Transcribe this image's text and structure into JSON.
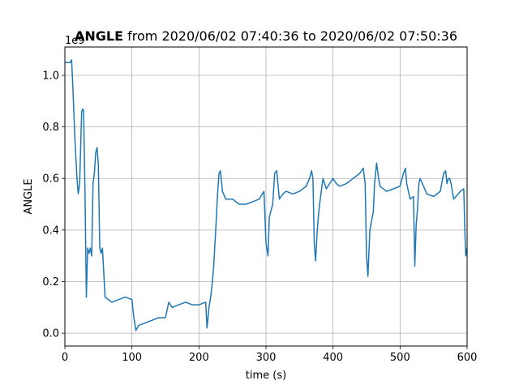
{
  "chart_data": {
    "type": "line",
    "title_bold": "ANGLE",
    "title_rest": " from 2020/06/02 07:40:36 to 2020/06/02 07:50:36",
    "xlabel": "time (s)",
    "ylabel": "ANGLE",
    "offset_text": "1e9",
    "xlim": [
      0,
      600
    ],
    "ylim": [
      -0.05,
      1.11
    ],
    "xticks": [
      0,
      100,
      200,
      300,
      400,
      500,
      600
    ],
    "xtick_labels": [
      "0",
      "100",
      "200",
      "300",
      "400",
      "500",
      "600"
    ],
    "yticks": [
      0.0,
      0.2,
      0.4,
      0.6,
      0.8,
      1.0
    ],
    "ytick_labels": [
      "0.0",
      "0.2",
      "0.4",
      "0.6",
      "0.8",
      "1.0"
    ],
    "grid": true,
    "line_color": "#1f77b4",
    "series": [
      {
        "x": [
          0,
          8,
          10,
          12,
          15,
          18,
          20,
          22,
          25,
          27,
          28,
          30,
          32,
          34,
          36,
          38,
          40,
          42,
          44,
          46,
          48,
          50,
          52,
          54,
          56,
          60,
          70,
          80,
          90,
          100,
          103,
          106,
          110,
          120,
          130,
          140,
          150,
          155,
          160,
          170,
          180,
          190,
          200,
          210,
          212,
          215,
          218,
          220,
          222,
          225,
          228,
          230,
          232,
          235,
          240,
          250,
          260,
          270,
          280,
          290,
          297,
          300,
          303,
          305,
          308,
          310,
          313,
          316,
          320,
          325,
          330,
          340,
          350,
          360,
          365,
          368,
          370,
          372,
          374,
          376,
          378,
          380,
          385,
          390,
          395,
          400,
          405,
          410,
          420,
          430,
          440,
          445,
          448,
          450,
          452,
          455,
          460,
          462,
          465,
          468,
          470,
          480,
          490,
          500,
          505,
          508,
          510,
          515,
          520,
          522,
          524,
          526,
          528,
          530,
          540,
          550,
          560,
          565,
          568,
          570,
          572,
          574,
          576,
          580,
          590,
          595,
          597,
          598,
          600
        ],
        "y": [
          1.05,
          1.05,
          1.06,
          0.95,
          0.75,
          0.6,
          0.54,
          0.58,
          0.86,
          0.87,
          0.86,
          0.55,
          0.14,
          0.33,
          0.31,
          0.33,
          0.3,
          0.58,
          0.62,
          0.7,
          0.72,
          0.65,
          0.33,
          0.31,
          0.33,
          0.14,
          0.12,
          0.13,
          0.14,
          0.13,
          0.06,
          0.01,
          0.03,
          0.04,
          0.05,
          0.06,
          0.06,
          0.12,
          0.1,
          0.11,
          0.12,
          0.11,
          0.11,
          0.12,
          0.02,
          0.1,
          0.15,
          0.2,
          0.26,
          0.4,
          0.55,
          0.62,
          0.63,
          0.55,
          0.52,
          0.52,
          0.5,
          0.5,
          0.51,
          0.52,
          0.55,
          0.35,
          0.3,
          0.45,
          0.48,
          0.5,
          0.62,
          0.63,
          0.52,
          0.54,
          0.55,
          0.54,
          0.55,
          0.57,
          0.6,
          0.63,
          0.6,
          0.35,
          0.28,
          0.38,
          0.45,
          0.5,
          0.6,
          0.56,
          0.58,
          0.6,
          0.58,
          0.57,
          0.58,
          0.6,
          0.62,
          0.64,
          0.58,
          0.3,
          0.22,
          0.4,
          0.47,
          0.58,
          0.66,
          0.6,
          0.57,
          0.55,
          0.56,
          0.57,
          0.62,
          0.64,
          0.58,
          0.52,
          0.53,
          0.26,
          0.42,
          0.48,
          0.58,
          0.6,
          0.54,
          0.53,
          0.55,
          0.62,
          0.63,
          0.58,
          0.6,
          0.6,
          0.58,
          0.52,
          0.55,
          0.56,
          0.37,
          0.3,
          0.33
        ]
      }
    ]
  }
}
